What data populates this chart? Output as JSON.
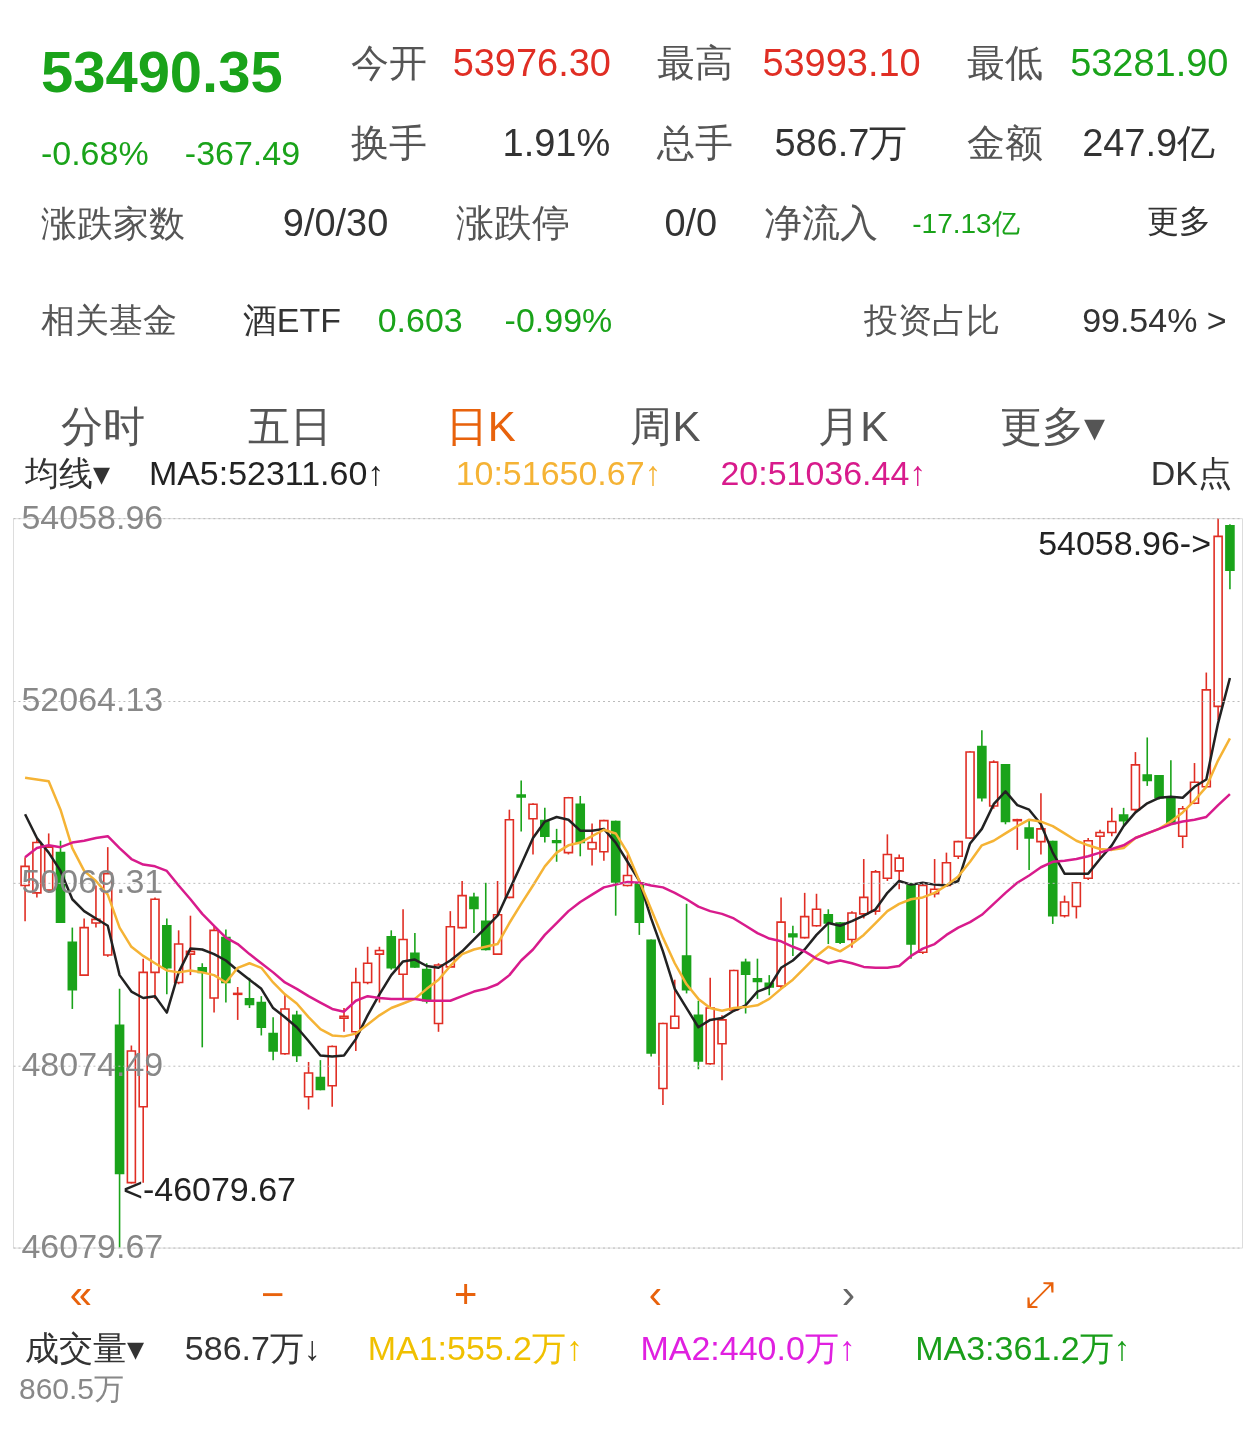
{
  "chart_data": [
    {
      "type": "other",
      "annotations": [
        "53490.35",
        "今开",
        "53976.30",
        "最高",
        "53993.10",
        "最低",
        "53281.90",
        "-0.68%",
        "-367.49",
        "换手",
        "1.91%",
        "总手",
        "586.7万",
        "金额",
        "247.9亿",
        "涨跌家数",
        "9/0/30",
        "涨跌停",
        "0/0",
        "净流入",
        "-17.13亿",
        "更多",
        "相关基金",
        "酒ETF",
        "0.603",
        "-0.99%",
        "投资占比",
        "99.54% >",
        "分时",
        "五日",
        "日K",
        "周K",
        "月K",
        "更多▾"
      ],
      "colors": [
        "#1aa31a",
        "#555555",
        "#e02e24",
        "#555555",
        "#e02e24",
        "#555555",
        "#1aa31a",
        "#1aa31a",
        "#1aa31a",
        "#555555",
        "#333333",
        "#555555",
        "#333333",
        "#555555",
        "#333333",
        "#555555",
        "#333333",
        "#555555",
        "#333333",
        "#555555",
        "#1aa31a",
        "#333333",
        "#555555",
        "#333333",
        "#1aa31a",
        "#1aa31a",
        "#555555",
        "#333333",
        "#555555",
        "#555555",
        "#e8620c",
        "#555555",
        "#555555",
        "#555555"
      ]
    },
    {
      "type": "candlestick",
      "categories": [
        null,
        null,
        null,
        null,
        null,
        null,
        null,
        null,
        null,
        null,
        null,
        null,
        null,
        null,
        null,
        null,
        null,
        null,
        null,
        null,
        null,
        null,
        null,
        null,
        null,
        null,
        null,
        null,
        null,
        null,
        null,
        null,
        null,
        null,
        null,
        null,
        null,
        null,
        null,
        null,
        null,
        null,
        null,
        null,
        null,
        null,
        null,
        null,
        null,
        null,
        null,
        null,
        null,
        null,
        null,
        null,
        null,
        null,
        null,
        null,
        null,
        null,
        null,
        null,
        null,
        null,
        null,
        null,
        null,
        null,
        null,
        null,
        null,
        null,
        null,
        null,
        null,
        null,
        null,
        null,
        null,
        null,
        null,
        null,
        null,
        null,
        null,
        null,
        null,
        null,
        null,
        null,
        null,
        null,
        null,
        null,
        null,
        null,
        null,
        null,
        null,
        null,
        null
      ],
      "ohlc": [
        [
          50040,
          50350,
          49650,
          50250
        ],
        [
          49960,
          50560,
          49910,
          50510
        ],
        [
          49990,
          50610,
          49960,
          50460
        ],
        [
          50400,
          50530,
          49630,
          49640
        ],
        [
          49420,
          49580,
          48690,
          48900
        ],
        [
          49060,
          49680,
          49050,
          49580
        ],
        [
          49630,
          50040,
          49580,
          49670
        ],
        [
          49280,
          50460,
          49260,
          50170
        ],
        [
          48510,
          48910,
          46079.67,
          46890
        ],
        [
          46790,
          48290,
          46780,
          48230
        ],
        [
          47620,
          49240,
          46790,
          49090
        ],
        [
          49090,
          49910,
          48800,
          49890
        ],
        [
          49600,
          49680,
          48850,
          49140
        ],
        [
          48980,
          49550,
          48960,
          49400
        ],
        [
          49290,
          49710,
          49060,
          49320
        ],
        [
          49140,
          49190,
          48270,
          49090
        ],
        [
          48810,
          49600,
          48650,
          49550
        ],
        [
          49470,
          49560,
          48760,
          48980
        ],
        [
          48850,
          48930,
          48570,
          48860
        ],
        [
          48800,
          49030,
          48700,
          48740
        ],
        [
          48760,
          48830,
          48400,
          48490
        ],
        [
          48420,
          48600,
          48130,
          48230
        ],
        [
          48200,
          48850,
          48190,
          48690
        ],
        [
          48620,
          48670,
          48110,
          48180
        ],
        [
          47730,
          48110,
          47590,
          47990
        ],
        [
          47940,
          48130,
          47800,
          47810
        ],
        [
          47850,
          48290,
          47620,
          48280
        ],
        [
          48590,
          48700,
          48440,
          48610
        ],
        [
          48440,
          49140,
          48230,
          48980
        ],
        [
          48980,
          49370,
          48960,
          49190
        ],
        [
          49290,
          49370,
          48760,
          49330
        ],
        [
          49480,
          49550,
          49120,
          49140
        ],
        [
          49070,
          49780,
          48800,
          49450
        ],
        [
          49300,
          49520,
          49140,
          49150
        ],
        [
          49120,
          49190,
          48750,
          48780
        ],
        [
          48530,
          49190,
          48440,
          49170
        ],
        [
          49150,
          49760,
          49140,
          49590
        ],
        [
          49580,
          50090,
          49570,
          49930
        ],
        [
          49910,
          49960,
          49520,
          49790
        ],
        [
          49650,
          50070,
          49330,
          49340
        ],
        [
          49290,
          50090,
          49280,
          49720
        ],
        [
          49910,
          50870,
          49900,
          50760
        ],
        [
          51030,
          51190,
          50630,
          51010
        ],
        [
          50770,
          50940,
          50380,
          50930
        ],
        [
          50750,
          50890,
          50510,
          50580
        ],
        [
          50530,
          50660,
          50300,
          50510
        ],
        [
          50400,
          51010,
          50380,
          51000
        ],
        [
          50930,
          51020,
          50360,
          50510
        ],
        [
          50440,
          50720,
          50260,
          50510
        ],
        [
          50410,
          50760,
          50310,
          50750
        ],
        [
          50740,
          50750,
          49710,
          50080
        ],
        [
          50040,
          50380,
          50030,
          50150
        ],
        [
          50070,
          50090,
          49500,
          49640
        ],
        [
          49440,
          49450,
          48170,
          48210
        ],
        [
          47820,
          48540,
          47640,
          48530
        ],
        [
          48480,
          49010,
          48470,
          48610
        ],
        [
          49270,
          49840,
          48860,
          48900
        ],
        [
          48620,
          48780,
          48030,
          48120
        ],
        [
          48090,
          49030,
          48080,
          48700
        ],
        [
          48310,
          48620,
          47910,
          48570
        ],
        [
          48680,
          49120,
          48670,
          49110
        ],
        [
          49200,
          49240,
          48640,
          49070
        ],
        [
          49020,
          49240,
          48800,
          48990
        ],
        [
          48970,
          49060,
          48840,
          48930
        ],
        [
          48940,
          49910,
          48920,
          49640
        ],
        [
          49510,
          49600,
          49270,
          49480
        ],
        [
          49470,
          49960,
          49460,
          49700
        ],
        [
          49600,
          49950,
          49590,
          49780
        ],
        [
          49720,
          49780,
          49400,
          49630
        ],
        [
          49630,
          49640,
          49400,
          49420
        ],
        [
          49450,
          49760,
          49360,
          49740
        ],
        [
          49730,
          50330,
          49680,
          49910
        ],
        [
          49760,
          50210,
          49720,
          50190
        ],
        [
          50120,
          50600,
          50090,
          50380
        ],
        [
          50200,
          50380,
          50000,
          50340
        ],
        [
          50040,
          50070,
          49240,
          49400
        ],
        [
          49310,
          50070,
          49290,
          50040
        ],
        [
          49950,
          50330,
          49910,
          50000
        ],
        [
          50040,
          50400,
          50030,
          50290
        ],
        [
          50360,
          50530,
          50330,
          50520
        ],
        [
          50560,
          51510,
          50550,
          51500
        ],
        [
          51560,
          51740,
          50960,
          51000
        ],
        [
          50910,
          51410,
          50880,
          51390
        ],
        [
          51360,
          51360,
          50710,
          50740
        ],
        [
          50750,
          50770,
          50430,
          50760
        ],
        [
          50670,
          50750,
          50210,
          50560
        ],
        [
          50520,
          51050,
          50380,
          50660
        ],
        [
          50520,
          50530,
          49620,
          49710
        ],
        [
          49710,
          49930,
          49690,
          49860
        ],
        [
          49810,
          50080,
          49680,
          50070
        ],
        [
          50120,
          50560,
          50100,
          50530
        ],
        [
          50580,
          50650,
          50330,
          50620
        ],
        [
          50620,
          50890,
          50580,
          50740
        ],
        [
          50810,
          50890,
          50700,
          50750
        ],
        [
          50870,
          51500,
          50840,
          51360
        ],
        [
          51250,
          51660,
          51130,
          51190
        ],
        [
          51240,
          51250,
          50980,
          51000
        ],
        [
          51000,
          51410,
          50710,
          50720
        ],
        [
          50580,
          50910,
          50450,
          50880
        ],
        [
          50940,
          51380,
          50930,
          51170
        ],
        [
          51120,
          52370,
          51110,
          52180
        ],
        [
          52000,
          54058.96,
          51850,
          53860
        ],
        [
          53976.3,
          53993.1,
          53281.9,
          53490.35
        ]
      ],
      "series": [
        {
          "name": "MA5:52311.60↑",
          "type": "line",
          "color": "#222222",
          "values": [
            50820,
            50560,
            50400,
            50200,
            49890,
            49760,
            49680,
            49600,
            49060,
            48880,
            48810,
            48830,
            48650,
            49090,
            49350,
            49340,
            49290,
            49220,
            49110,
            49010,
            48910,
            48700,
            48600,
            48490,
            48340,
            48180,
            48170,
            48180,
            48360,
            48620,
            48850,
            49060,
            49210,
            49230,
            49160,
            49140,
            49220,
            49320,
            49450,
            49580,
            49710,
            49990,
            50270,
            50560,
            50740,
            50790,
            50760,
            50640,
            50640,
            50660,
            50510,
            50300,
            50090,
            49680,
            49320,
            48910,
            48700,
            48490,
            48570,
            48590,
            48670,
            48730,
            48880,
            48930,
            49140,
            49220,
            49340,
            49500,
            49630,
            49600,
            49650,
            49710,
            49780,
            49960,
            50090,
            50050,
            50070,
            50050,
            50040,
            50090,
            50500,
            50660,
            50930,
            51070,
            50920,
            50870,
            50710,
            50400,
            50170,
            50170,
            50170,
            50330,
            50480,
            50690,
            50840,
            50940,
            51000,
            51010,
            51000,
            51120,
            51200,
            51820,
            52310
          ]
        },
        {
          "name": "10:51650.67↑",
          "type": "line",
          "color": "#f5b335",
          "values": [
            51220,
            51200,
            51180,
            50870,
            50450,
            50200,
            50090,
            49940,
            49580,
            49370,
            49270,
            49190,
            49110,
            49090,
            49110,
            49090,
            49060,
            48980,
            49140,
            49190,
            49140,
            48980,
            48850,
            48750,
            48600,
            48470,
            48400,
            48390,
            48420,
            48520,
            48620,
            48700,
            48750,
            48800,
            48910,
            49010,
            49160,
            49290,
            49340,
            49370,
            49400,
            49630,
            49840,
            50040,
            50250,
            50400,
            50480,
            50510,
            50580,
            50650,
            50610,
            50400,
            50090,
            49780,
            49470,
            49190,
            48960,
            48800,
            48700,
            48670,
            48700,
            48710,
            48730,
            48800,
            48910,
            49010,
            49140,
            49270,
            49370,
            49320,
            49400,
            49500,
            49630,
            49760,
            49840,
            49890,
            49910,
            49960,
            50040,
            50140,
            50300,
            50480,
            50530,
            50610,
            50690,
            50760,
            50740,
            50690,
            50610,
            50530,
            50480,
            50440,
            50430,
            50450,
            50560,
            50610,
            50660,
            50740,
            50840,
            50970,
            51120,
            51410,
            51650
          ]
        },
        {
          "name": "20:51036.44↑",
          "type": "line",
          "color": "#d81b8c",
          "values": [
            50350,
            50450,
            50480,
            50460,
            50510,
            50530,
            50560,
            50580,
            50450,
            50330,
            50270,
            50250,
            50200,
            50040,
            49890,
            49730,
            49600,
            49470,
            49400,
            49290,
            49190,
            49090,
            48980,
            48910,
            48830,
            48760,
            48690,
            48660,
            48780,
            48830,
            48810,
            48800,
            48800,
            48800,
            48780,
            48780,
            48780,
            48830,
            48880,
            48910,
            48960,
            49060,
            49220,
            49340,
            49500,
            49630,
            49760,
            49860,
            49940,
            50020,
            50050,
            50080,
            50070,
            50040,
            50020,
            49960,
            49890,
            49810,
            49760,
            49730,
            49680,
            49600,
            49520,
            49460,
            49430,
            49370,
            49320,
            49240,
            49190,
            49220,
            49190,
            49150,
            49140,
            49140,
            49160,
            49270,
            49350,
            49400,
            49500,
            49580,
            49640,
            49720,
            49840,
            49960,
            50070,
            50150,
            50240,
            50300,
            50310,
            50330,
            50360,
            50400,
            50440,
            50480,
            50560,
            50610,
            50660,
            50710,
            50740,
            50760,
            50790,
            50920,
            51040
          ]
        }
      ],
      "ylim": [
        46079.67,
        54058.96
      ],
      "yticks": [
        46079.67,
        48074.49,
        50069.31,
        52064.13,
        54058.96
      ],
      "grid": "y",
      "legend": "top",
      "tick_labels": "y",
      "annotations": [
        "均线▾",
        "DK点",
        "54058.96->",
        "<-46079.67"
      ]
    },
    {
      "type": "other",
      "annotations": [
        "«",
        "−",
        "+",
        "‹",
        "›",
        "⤢",
        "成交量▾",
        "586.7万↓",
        "MA1:555.2万↑",
        "MA2:440.0万↑",
        "MA3:361.2万↑",
        "860.5万"
      ],
      "colors": [
        "#e8620c",
        "#e8620c",
        "#e8620c",
        "#e8620c",
        "#666666",
        "#e8620c",
        "#333333",
        "#333333",
        "#f0c000",
        "#e020e0",
        "#1a9e1a",
        "#888888"
      ]
    }
  ]
}
